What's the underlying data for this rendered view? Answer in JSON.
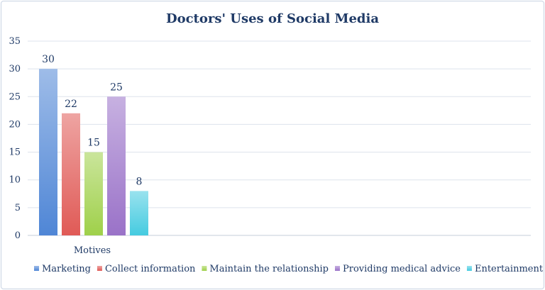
{
  "chart_data": {
    "type": "bar",
    "title": "Doctors' Uses of Social Media",
    "categories": [
      "Motives"
    ],
    "series": [
      {
        "name": "Marketing",
        "values": [
          30
        ],
        "color": "#4f86d6"
      },
      {
        "name": "Collect information",
        "values": [
          22
        ],
        "color": "#e05a56"
      },
      {
        "name": "Maintain the relationship",
        "values": [
          15
        ],
        "color": "#9fd04a"
      },
      {
        "name": "Providing medical advice",
        "values": [
          25
        ],
        "color": "#9a72c8"
      },
      {
        "name": "Entertainment",
        "values": [
          8
        ],
        "color": "#45cbe0"
      }
    ],
    "ylim": [
      0,
      35
    ],
    "yticks": [
      0,
      5,
      10,
      15,
      20,
      25,
      30,
      35
    ],
    "grid": true,
    "legend": "bottom"
  }
}
